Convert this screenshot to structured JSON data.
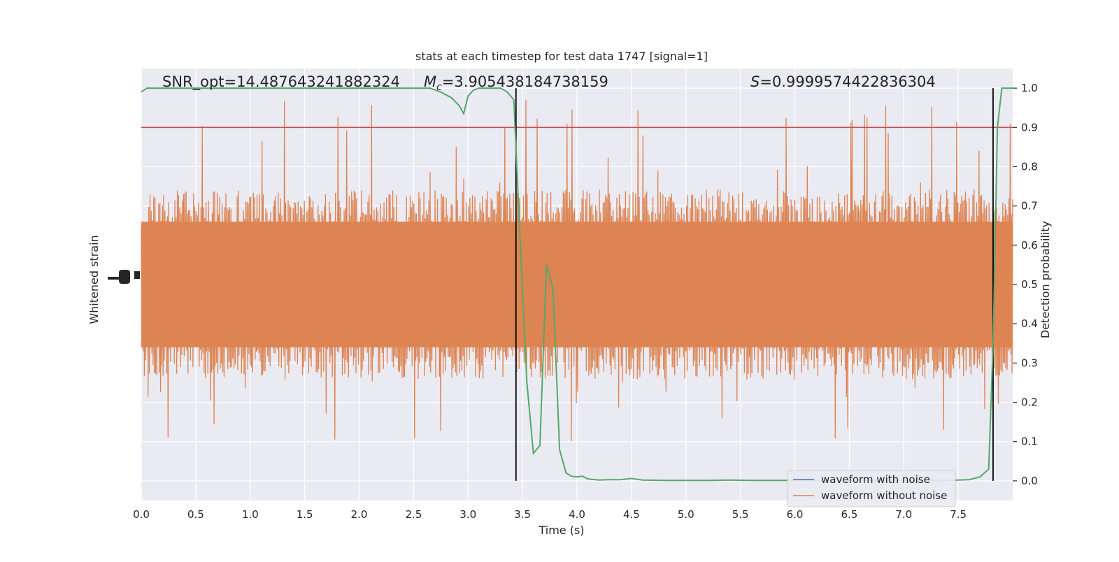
{
  "chart_data": {
    "type": "line",
    "title": "stats at each timestep for test data 1747 [signal=1]",
    "xlabel": "Time (s)",
    "ylabel_left": "Whitened strain",
    "ylabel_right": "Detection probability",
    "xlim": [
      0,
      8
    ],
    "ylim_right": [
      -0.05,
      1.05
    ],
    "x_ticks": [
      "0.0",
      "0.5",
      "1.0",
      "1.5",
      "2.0",
      "2.5",
      "3.0",
      "3.5",
      "4.0",
      "4.5",
      "5.0",
      "5.5",
      "6.0",
      "6.5",
      "7.0",
      "7.5"
    ],
    "x_tick_values": [
      0,
      0.5,
      1,
      1.5,
      2,
      2.5,
      3,
      3.5,
      4,
      4.5,
      5,
      5.5,
      6,
      6.5,
      7,
      7.5
    ],
    "y_ticks_right": [
      "0.0",
      "0.1",
      "0.2",
      "0.3",
      "0.4",
      "0.5",
      "0.6",
      "0.7",
      "0.8",
      "0.9",
      "1.0"
    ],
    "y_tick_values_right": [
      0,
      0.1,
      0.2,
      0.3,
      0.4,
      0.5,
      0.6,
      0.7,
      0.8,
      0.9,
      1.0
    ],
    "grid": true,
    "annotations": {
      "snr": "SNR_opt=14.487643241882324",
      "mc_symbol": "M",
      "mc_sub": "c",
      "mc_value": "=3.905438184738159",
      "s_symbol": "S",
      "s_value": "=0.9999574422836304"
    },
    "threshold": 0.9,
    "vlines": [
      3.44,
      7.82
    ],
    "legend": {
      "placement": "lower-right",
      "entries": [
        {
          "label": "waveform with noise",
          "color": "#4c72b0"
        },
        {
          "label": "waveform without noise",
          "color": "#dd8452"
        }
      ]
    },
    "colors": {
      "waveform_noise": "#4c72b0",
      "waveform_clean": "#dd8452",
      "probability": "#55a868",
      "threshold": "#c44e52",
      "vline": "#000000",
      "background": "#eaeaf2"
    },
    "probability_series": {
      "name": "",
      "x": [
        0,
        0.05,
        0.1,
        0.2,
        0.5,
        1.0,
        1.5,
        2.0,
        2.5,
        2.65,
        2.75,
        2.85,
        2.92,
        2.96,
        3.0,
        3.05,
        3.1,
        3.2,
        3.3,
        3.36,
        3.42,
        3.48,
        3.54,
        3.6,
        3.66,
        3.72,
        3.78,
        3.84,
        3.9,
        3.95,
        4.0,
        4.05,
        4.1,
        4.2,
        4.3,
        4.4,
        4.5,
        4.6,
        4.8,
        5.0,
        5.2,
        5.4,
        5.6,
        5.8,
        6.0,
        6.5,
        7.0,
        7.4,
        7.6,
        7.7,
        7.78,
        7.82,
        7.86,
        7.9,
        7.94,
        8.0
      ],
      "y": [
        0.99,
        1.0,
        1.0,
        1.0,
        1.0,
        1.0,
        1.0,
        1.0,
        1.0,
        1.0,
        0.99,
        0.975,
        0.955,
        0.935,
        0.98,
        0.995,
        1.0,
        1.0,
        1.0,
        0.99,
        0.97,
        0.6,
        0.25,
        0.07,
        0.09,
        0.55,
        0.49,
        0.08,
        0.02,
        0.012,
        0.01,
        0.012,
        0.005,
        0.002,
        0.003,
        0.003,
        0.006,
        0.002,
        0.001,
        0.001,
        0.001,
        0.002,
        0.001,
        0.001,
        0.001,
        0.001,
        0.001,
        0.001,
        0.003,
        0.01,
        0.03,
        0.35,
        0.9,
        1.0,
        1.0,
        1.0
      ]
    },
    "waveform_without_noise": {
      "description_level": "dense random signal filling region between probability-axis ~0.25 and ~0.75 with spikes from ~0.09 to ~1.0",
      "band_low": 0.28,
      "band_high": 0.72,
      "spike_min": 0.08,
      "spike_max": 1.0
    }
  }
}
